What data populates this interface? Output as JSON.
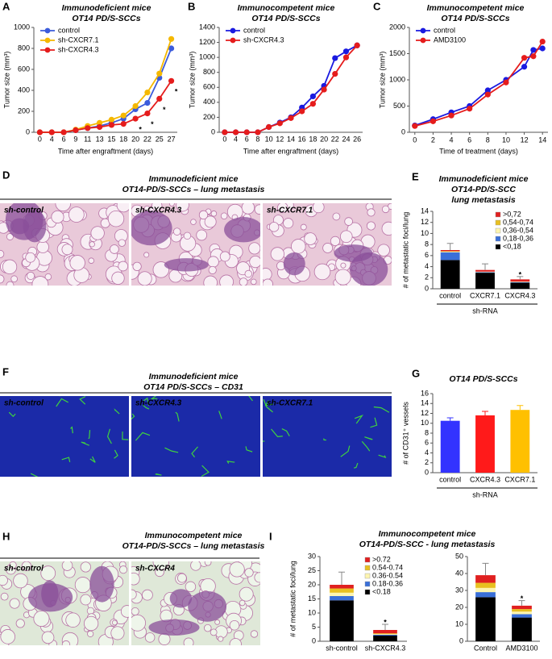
{
  "chart_data": [
    {
      "type": "line",
      "panel": "A",
      "title": [
        "Immunodeficient mice",
        "OT14 PD/S-SCCs"
      ],
      "xlabel": "Time after engraftment  (days)",
      "ylabel": "Tumor size (mm³)",
      "categories": [
        "0",
        "4",
        "6",
        "9",
        "11",
        "13",
        "15",
        "18",
        "20",
        "22",
        "25",
        "27"
      ],
      "ylim": [
        0,
        1000
      ],
      "yticks": [
        0,
        200,
        400,
        600,
        800,
        1000
      ],
      "legend": "upper left",
      "series": [
        {
          "name": "control",
          "color": "#3b5bdb",
          "values": [
            0,
            0,
            0,
            20,
            40,
            60,
            90,
            130,
            220,
            280,
            520,
            800
          ]
        },
        {
          "name": "sh-CXCR7.1",
          "color": "#f5b800",
          "values": [
            0,
            0,
            0,
            25,
            60,
            90,
            120,
            160,
            250,
            380,
            560,
            890
          ]
        },
        {
          "name": "sh-CXCR4.3",
          "color": "#e51c1c",
          "values": [
            0,
            0,
            0,
            20,
            40,
            50,
            70,
            80,
            130,
            180,
            320,
            490
          ]
        }
      ],
      "annotations": [
        {
          "text": "*",
          "category": "20",
          "series": "sh-CXCR4.3",
          "color": "#e51c1c"
        },
        {
          "text": "*",
          "category": "22",
          "series": "sh-CXCR4.3",
          "color": "#e51c1c"
        },
        {
          "text": "*",
          "category": "25",
          "series": "sh-CXCR4.3",
          "color": "#e51c1c"
        },
        {
          "text": "*",
          "category": "27",
          "series": "sh-CXCR4.3",
          "color": "#e51c1c"
        }
      ]
    },
    {
      "type": "line",
      "panel": "B",
      "title": [
        "Immunocompetent mice",
        "OT14 PD/S-SCCs"
      ],
      "xlabel": "Time after engraftment  (days)",
      "ylabel": "Tumor size (mm³)",
      "categories": [
        "0",
        "4",
        "6",
        "8",
        "10",
        "12",
        "14",
        "16",
        "18",
        "20",
        "22",
        "24",
        "26"
      ],
      "ylim": [
        0,
        1400
      ],
      "yticks": [
        0,
        200,
        400,
        600,
        800,
        1000,
        1200,
        1400
      ],
      "legend": "upper left",
      "series": [
        {
          "name": "control",
          "color": "#1a1ae0",
          "values": [
            0,
            0,
            0,
            0,
            70,
            130,
            200,
            330,
            480,
            620,
            990,
            1080,
            1160
          ]
        },
        {
          "name": "sh-CXCR4.3",
          "color": "#e51c1c",
          "values": [
            0,
            0,
            0,
            0,
            70,
            120,
            190,
            280,
            380,
            570,
            780,
            1000,
            1160
          ]
        }
      ]
    },
    {
      "type": "line",
      "panel": "C",
      "title": [
        "Immunocompetent mice",
        "OT14 PD/S-SCCs"
      ],
      "xlabel": "Time of treatment  (days)",
      "ylabel": "Tumor size (mm³)",
      "x": [
        0,
        2,
        4,
        6,
        8,
        10,
        12,
        13,
        14
      ],
      "xlim": [
        -0.6,
        14.6
      ],
      "xticks": [
        0,
        2,
        4,
        6,
        8,
        10,
        12,
        14
      ],
      "ylim": [
        0,
        2000
      ],
      "yticks": [
        0,
        500,
        1000,
        1500,
        2000
      ],
      "legend": "upper left",
      "series": [
        {
          "name": "control",
          "color": "#1a1ae0",
          "values": [
            130,
            250,
            380,
            500,
            800,
            1000,
            1250,
            1570,
            1600
          ]
        },
        {
          "name": "AMD3100",
          "color": "#e51c1c",
          "values": [
            120,
            210,
            320,
            450,
            720,
            950,
            1420,
            1450,
            1730
          ]
        }
      ]
    },
    {
      "type": "stacked_bar",
      "panel": "E",
      "title": [
        "Immunodeficient mice",
        "OT14-PD/S-SCC",
        "lung metastasis"
      ],
      "xlabel": "sh-RNA",
      "ylabel": "# of metastatic foci/lung",
      "categories": [
        "control",
        "CXCR7.1",
        "CXCR4.3"
      ],
      "ylim": [
        0,
        14
      ],
      "yticks": [
        0,
        2,
        4,
        6,
        8,
        10,
        12,
        14
      ],
      "legend": "upper right",
      "series": [
        {
          "name": "<0,18",
          "color": "#000000",
          "values": [
            5.2,
            2.9,
            1.1
          ]
        },
        {
          "name": "0,18-0,36",
          "color": "#3a6fd8",
          "values": [
            1.4,
            0.1,
            0.1
          ]
        },
        {
          "name": "0,36-0,54",
          "color": "#fdf5b0",
          "values": [
            0.1,
            0.1,
            0.1
          ]
        },
        {
          "name": "0,54-0,74",
          "color": "#e8c020",
          "values": [
            0.1,
            0,
            0
          ]
        },
        {
          "name": ">0,72",
          "color": "#e02020",
          "values": [
            0.2,
            0.3,
            0.4
          ]
        }
      ],
      "errors": [
        1.2,
        1.1,
        0.5
      ],
      "annotations": [
        {
          "text": "*",
          "category": "CXCR4.3",
          "color": "#000000"
        }
      ]
    },
    {
      "type": "bar",
      "panel": "G",
      "title": [
        "OT14 PD/S-SCCs"
      ],
      "xlabel": "sh-RNA",
      "ylabel": "# of CD31⁺ vessels",
      "categories": [
        "control",
        "CXCR4.3",
        "CXCR7.1"
      ],
      "values": [
        10.5,
        11.6,
        12.7
      ],
      "errors": [
        0.6,
        0.8,
        0.9
      ],
      "colors": [
        "#3333ff",
        "#ff1a1a",
        "#ffc000"
      ],
      "ylim": [
        0,
        16
      ],
      "yticks": [
        0,
        2,
        4,
        6,
        8,
        10,
        12,
        14,
        16
      ]
    },
    {
      "type": "stacked_bar",
      "panel": "I",
      "title": [
        "Immunocompetent mice",
        "OT14-PD/S-SCC - lung metastasis"
      ],
      "ylabel": "# of metastatic foci/lung",
      "categories": [
        "sh-control",
        "sh-CXCR4.3"
      ],
      "ylim": [
        0,
        30
      ],
      "yticks": [
        0,
        5,
        10,
        15,
        20,
        25,
        30
      ],
      "legend": "upper right",
      "series": [
        {
          "name": "<0.18",
          "color": "#000000",
          "values": [
            14.5,
            2
          ]
        },
        {
          "name": "0.18-0.36",
          "color": "#3a6fd8",
          "values": [
            1.5,
            0.3
          ]
        },
        {
          "name": "0.36-0.54",
          "color": "#fdf5b0",
          "values": [
            1.2,
            0.2
          ]
        },
        {
          "name": "0.54-0.74",
          "color": "#e8c020",
          "values": [
            1.5,
            0.3
          ]
        },
        {
          "name": ">0.72",
          "color": "#e02020",
          "values": [
            1.3,
            1.2
          ]
        }
      ],
      "errors": [
        4.5,
        2
      ],
      "annotations": [
        {
          "text": "*",
          "category": "sh-CXCR4.3",
          "color": "#000000"
        }
      ]
    },
    {
      "type": "stacked_bar",
      "categories": [
        "Control",
        "AMD3100"
      ],
      "ylim": [
        0,
        50
      ],
      "yticks": [
        0,
        10,
        20,
        30,
        40,
        50
      ],
      "series": [
        {
          "color": "#000000",
          "values": [
            26,
            14
          ]
        },
        {
          "color": "#3a6fd8",
          "values": [
            3,
            2
          ]
        },
        {
          "color": "#fdf5b0",
          "values": [
            2.5,
            1.5
          ]
        },
        {
          "color": "#e8c020",
          "values": [
            3,
            1.5
          ]
        },
        {
          "color": "#e02020",
          "values": [
            4.5,
            2
          ]
        }
      ],
      "errors": [
        7,
        3
      ],
      "annotations": [
        {
          "text": "*",
          "category": "AMD3100",
          "color": "#000000"
        }
      ]
    }
  ],
  "image_panels": [
    {
      "panel": "D",
      "title": [
        "Immunodeficient mice",
        "OT14-PD/S-SCCs – lung metastasis"
      ],
      "images": [
        "sh-control",
        "sh-CXCR4.3",
        "sh-CXCR7.1"
      ]
    },
    {
      "panel": "F",
      "title": [
        "Immunodeficient mice",
        "OT14 PD/S-SCCs  – CD31"
      ],
      "images": [
        "sh-control",
        "sh-CXCR4.3",
        "sh-CXCR7.1"
      ]
    },
    {
      "panel": "H",
      "title": [
        "Immunocompetent mice",
        "OT14-PD/S-SCCs – lung metastasis"
      ],
      "images": [
        "sh-control",
        "sh-CXCR4"
      ]
    }
  ]
}
